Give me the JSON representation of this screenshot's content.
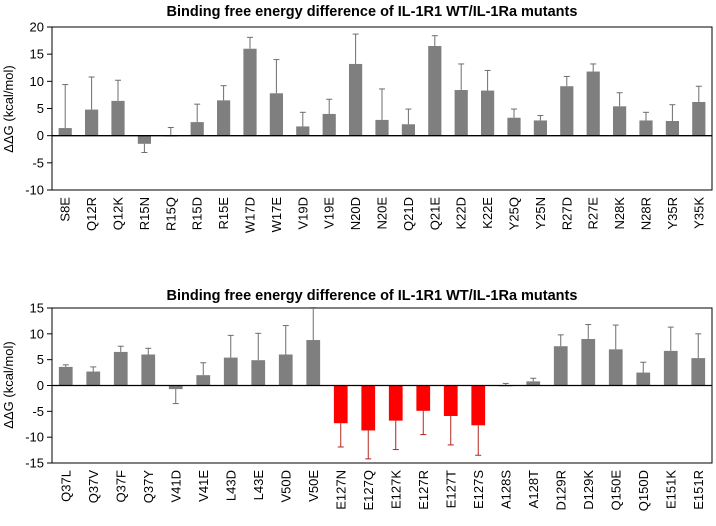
{
  "chart_data": [
    {
      "type": "bar",
      "title": "Binding free energy difference of IL-1R1 WT/IL-1Ra mutants",
      "xlabel": "",
      "ylabel": "ΔΔG (kcal/mol)",
      "ylim": [
        -10,
        20
      ],
      "yticks": [
        "-10",
        "-5",
        "0",
        "5",
        "10",
        "15",
        "20"
      ],
      "colors": {
        "default": "#7f7f7f"
      },
      "categories": [
        "S8E",
        "Q12R",
        "Q12K",
        "R15N",
        "R15Q",
        "R15D",
        "R15E",
        "W17D",
        "W17E",
        "V19D",
        "V19E",
        "N20D",
        "N20E",
        "Q21D",
        "Q21E",
        "K22D",
        "K22E",
        "Y25Q",
        "Y25N",
        "R27D",
        "R27E",
        "N28K",
        "N28R",
        "Y35R",
        "Y35K"
      ],
      "values": [
        1.4,
        4.8,
        6.4,
        -1.5,
        0.0,
        2.5,
        6.5,
        16.0,
        7.8,
        1.7,
        4.0,
        13.2,
        2.9,
        2.1,
        16.5,
        8.4,
        8.3,
        3.3,
        2.8,
        9.1,
        11.8,
        5.4,
        2.8,
        2.7,
        6.2
      ],
      "errors": [
        8.0,
        6.0,
        3.8,
        1.6,
        1.5,
        3.3,
        2.7,
        2.1,
        6.2,
        2.6,
        2.7,
        5.5,
        5.7,
        2.8,
        1.9,
        4.8,
        3.7,
        1.6,
        0.9,
        1.8,
        1.4,
        2.5,
        1.5,
        3.0,
        2.9
      ]
    },
    {
      "type": "bar",
      "title": "Binding free energy difference of IL-1R1 WT/IL-1Ra mutants",
      "xlabel": "",
      "ylabel": "ΔΔG (kcal/mol)",
      "ylim": [
        -15,
        15
      ],
      "yticks": [
        "-15",
        "-10",
        "-5",
        "0",
        "5",
        "10",
        "15"
      ],
      "colors": {
        "default": "#7f7f7f",
        "highlight": "#ff0000"
      },
      "categories": [
        "Q37L",
        "Q37V",
        "Q37F",
        "Q37Y",
        "V41D",
        "V41E",
        "L43D",
        "L43E",
        "V50D",
        "V50E",
        "E127N",
        "E127Q",
        "E127K",
        "E127R",
        "E127T",
        "E127S",
        "A128S",
        "A128T",
        "D129R",
        "D129K",
        "Q150E",
        "Q150D",
        "E151K",
        "E151R"
      ],
      "values": [
        3.6,
        2.7,
        6.5,
        6.0,
        -0.7,
        2.0,
        5.4,
        4.9,
        6.0,
        8.8,
        -7.3,
        -8.7,
        -6.8,
        -4.9,
        -5.9,
        -7.7,
        0.0,
        0.8,
        7.6,
        9.0,
        7.0,
        2.5,
        6.7,
        5.3
      ],
      "errors": [
        0.4,
        0.9,
        1.1,
        1.2,
        2.8,
        2.4,
        4.3,
        5.2,
        5.6,
        6.3,
        4.6,
        5.5,
        5.6,
        4.6,
        5.6,
        5.8,
        0.4,
        0.6,
        2.2,
        2.8,
        4.7,
        2.0,
        4.6,
        4.7
      ],
      "highlight": [
        false,
        false,
        false,
        false,
        false,
        false,
        false,
        false,
        false,
        false,
        true,
        true,
        true,
        true,
        true,
        true,
        false,
        false,
        false,
        false,
        false,
        false,
        false,
        false
      ]
    }
  ]
}
